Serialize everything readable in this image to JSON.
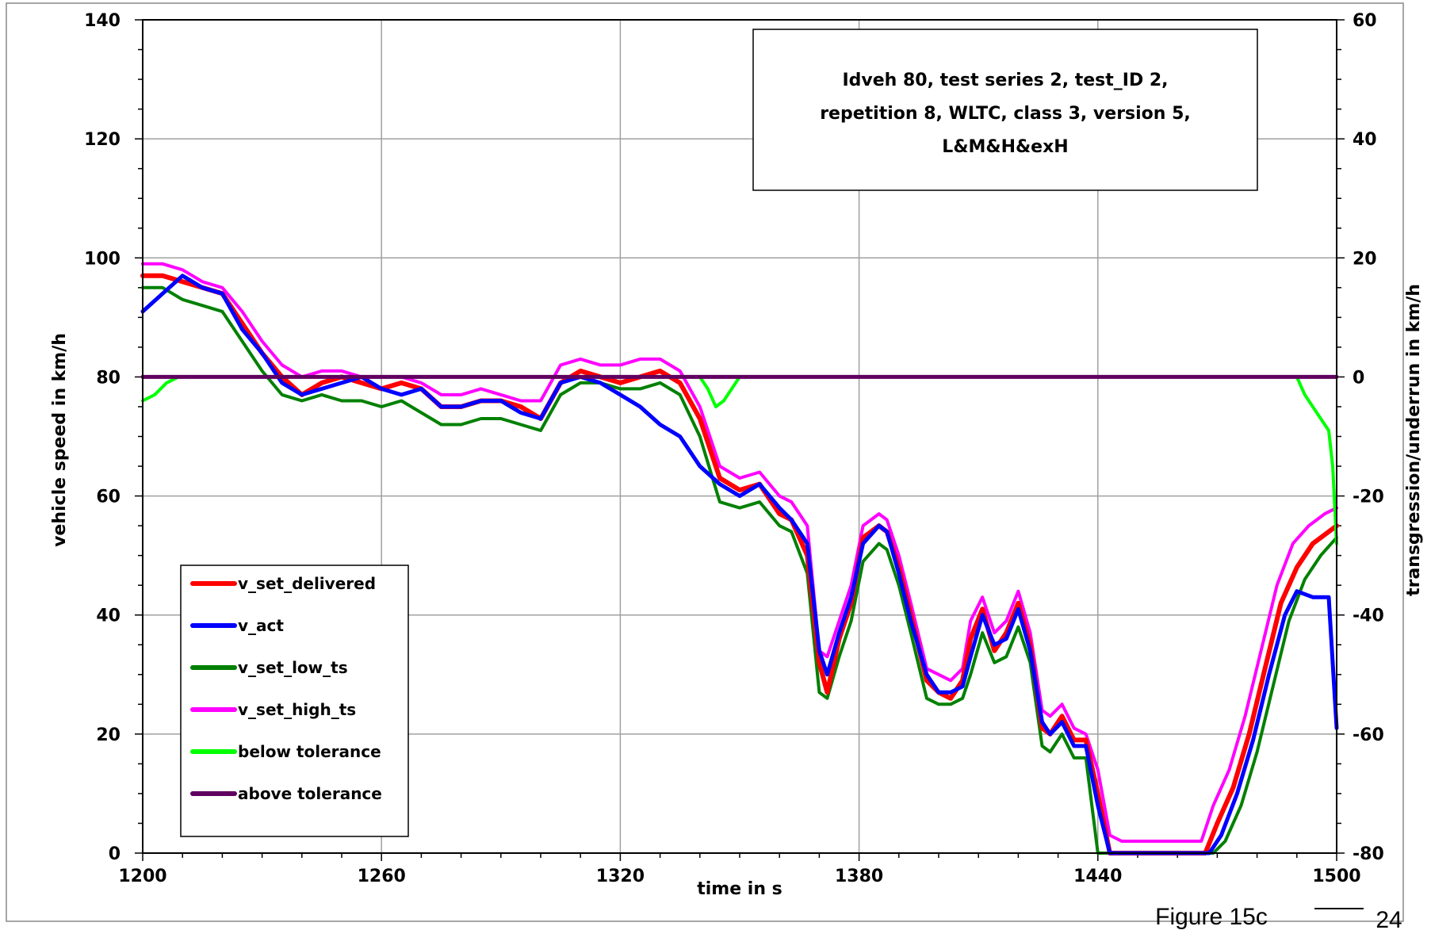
{
  "chart_data": {
    "type": "line",
    "title_lines": [
      "Idveh 80, test series 2, test_ID 2,",
      "repetition 8, WLTC, class 3, version 5,",
      "L&M&H&exH"
    ],
    "xlabel": "time in s",
    "ylabel": "vehicle speed in km/h",
    "y2label": "transgression/underrun in km/h",
    "xlim": [
      1200,
      1500
    ],
    "ylim": [
      0,
      140
    ],
    "y2lim": [
      -80,
      60
    ],
    "x_ticks": [
      "1200",
      "1260",
      "1320",
      "1380",
      "1440",
      "1500"
    ],
    "y_ticks": [
      "0",
      "20",
      "40",
      "60",
      "80",
      "100",
      "120",
      "140"
    ],
    "y2_ticks": [
      "-80",
      "-60",
      "-40",
      "-20",
      "0",
      "20",
      "40",
      "60"
    ],
    "grid": true,
    "legend_position": "bottom-left",
    "series": [
      {
        "name": "v_set_delivered",
        "color": "#ff0000",
        "axis": "left",
        "x": [
          1200,
          1205,
          1210,
          1215,
          1220,
          1225,
          1230,
          1235,
          1240,
          1245,
          1250,
          1255,
          1260,
          1265,
          1270,
          1275,
          1280,
          1285,
          1290,
          1295,
          1300,
          1305,
          1310,
          1315,
          1320,
          1325,
          1330,
          1335,
          1340,
          1345,
          1350,
          1355,
          1360,
          1363,
          1367,
          1370,
          1372,
          1375,
          1378,
          1381,
          1385,
          1387,
          1390,
          1393,
          1397,
          1400,
          1403,
          1406,
          1408,
          1411,
          1414,
          1417,
          1420,
          1423,
          1426,
          1428,
          1431,
          1434,
          1437,
          1440,
          1443,
          1446,
          1450,
          1460,
          1467,
          1470,
          1474,
          1478,
          1482,
          1486,
          1490,
          1494,
          1498,
          1500
        ],
        "y": [
          97,
          97,
          96,
          95,
          94,
          89,
          84,
          80,
          77,
          79,
          80,
          79,
          78,
          79,
          78,
          75,
          75,
          76,
          76,
          75,
          73,
          79,
          81,
          80,
          79,
          80,
          81,
          79,
          73,
          63,
          61,
          62,
          57,
          56,
          50,
          32,
          27,
          36,
          42,
          53,
          55,
          54,
          48,
          40,
          29,
          27,
          26,
          29,
          36,
          41,
          34,
          37,
          42,
          35,
          21,
          20,
          23,
          19,
          19,
          10,
          0,
          0,
          0,
          0,
          0,
          5,
          11,
          20,
          31,
          42,
          48,
          52,
          54,
          55
        ]
      },
      {
        "name": "v_act",
        "color": "#0000ff",
        "axis": "left",
        "x": [
          1200,
          1205,
          1210,
          1215,
          1220,
          1225,
          1230,
          1235,
          1240,
          1245,
          1250,
          1255,
          1260,
          1265,
          1270,
          1275,
          1280,
          1285,
          1290,
          1295,
          1300,
          1305,
          1310,
          1315,
          1320,
          1325,
          1330,
          1335,
          1340,
          1345,
          1350,
          1355,
          1360,
          1363,
          1367,
          1370,
          1372,
          1375,
          1378,
          1381,
          1385,
          1387,
          1390,
          1393,
          1397,
          1400,
          1403,
          1406,
          1408,
          1411,
          1414,
          1417,
          1420,
          1423,
          1426,
          1428,
          1431,
          1434,
          1437,
          1440,
          1443,
          1446,
          1450,
          1460,
          1468,
          1471,
          1475,
          1479,
          1483,
          1487,
          1490,
          1494,
          1498,
          1500
        ],
        "y": [
          91,
          94,
          97,
          95,
          94,
          88,
          84,
          79,
          77,
          78,
          79,
          80,
          78,
          77,
          78,
          75,
          75,
          76,
          76,
          74,
          73,
          79,
          80,
          79,
          77,
          75,
          72,
          70,
          65,
          62,
          60,
          62,
          58,
          56,
          52,
          34,
          30,
          37,
          43,
          52,
          55,
          54,
          47,
          39,
          30,
          27,
          27,
          28,
          33,
          40,
          35,
          36,
          41,
          34,
          22,
          20,
          22,
          18,
          18,
          8,
          0,
          0,
          0,
          0,
          0,
          3,
          10,
          19,
          30,
          40,
          44,
          43,
          43,
          21
        ]
      },
      {
        "name": "v_set_low_ts",
        "color": "#008000",
        "axis": "left",
        "x": [
          1200,
          1205,
          1210,
          1215,
          1220,
          1225,
          1230,
          1235,
          1240,
          1245,
          1250,
          1255,
          1260,
          1265,
          1270,
          1275,
          1280,
          1285,
          1290,
          1295,
          1300,
          1305,
          1310,
          1315,
          1320,
          1325,
          1330,
          1335,
          1340,
          1345,
          1350,
          1355,
          1360,
          1363,
          1367,
          1370,
          1372,
          1375,
          1378,
          1381,
          1385,
          1387,
          1390,
          1393,
          1397,
          1400,
          1403,
          1406,
          1408,
          1411,
          1414,
          1417,
          1420,
          1423,
          1426,
          1428,
          1431,
          1434,
          1437,
          1440,
          1443,
          1446,
          1450,
          1460,
          1469,
          1472,
          1476,
          1480,
          1484,
          1488,
          1492,
          1496,
          1500
        ],
        "y": [
          95,
          95,
          93,
          92,
          91,
          86,
          81,
          77,
          76,
          77,
          76,
          76,
          75,
          76,
          74,
          72,
          72,
          73,
          73,
          72,
          71,
          77,
          79,
          79,
          78,
          78,
          79,
          77,
          70,
          59,
          58,
          59,
          55,
          54,
          47,
          27,
          26,
          33,
          39,
          49,
          52,
          51,
          45,
          37,
          26,
          25,
          25,
          26,
          30,
          37,
          32,
          33,
          38,
          32,
          18,
          17,
          20,
          16,
          16,
          0,
          0,
          0,
          0,
          0,
          0,
          2,
          8,
          17,
          28,
          39,
          46,
          50,
          53
        ]
      },
      {
        "name": "v_set_high_ts",
        "color": "#ff00ff",
        "axis": "left",
        "x": [
          1200,
          1205,
          1210,
          1215,
          1220,
          1225,
          1230,
          1235,
          1240,
          1245,
          1250,
          1255,
          1260,
          1265,
          1270,
          1275,
          1280,
          1285,
          1290,
          1295,
          1300,
          1305,
          1310,
          1315,
          1320,
          1325,
          1330,
          1335,
          1340,
          1345,
          1350,
          1355,
          1360,
          1363,
          1367,
          1370,
          1372,
          1375,
          1378,
          1381,
          1385,
          1387,
          1390,
          1393,
          1397,
          1400,
          1403,
          1406,
          1408,
          1411,
          1414,
          1417,
          1420,
          1423,
          1426,
          1428,
          1431,
          1434,
          1437,
          1440,
          1443,
          1446,
          1450,
          1460,
          1466,
          1469,
          1473,
          1477,
          1481,
          1485,
          1489,
          1493,
          1497,
          1500
        ],
        "y": [
          99,
          99,
          98,
          96,
          95,
          91,
          86,
          82,
          80,
          81,
          81,
          80,
          80,
          80,
          79,
          77,
          77,
          78,
          77,
          76,
          76,
          82,
          83,
          82,
          82,
          83,
          83,
          81,
          75,
          65,
          63,
          64,
          60,
          59,
          55,
          34,
          33,
          39,
          45,
          55,
          57,
          56,
          50,
          42,
          31,
          30,
          29,
          31,
          39,
          43,
          37,
          39,
          44,
          37,
          24,
          23,
          25,
          21,
          20,
          14,
          3,
          2,
          2,
          2,
          2,
          8,
          14,
          23,
          34,
          45,
          52,
          55,
          57,
          58
        ]
      },
      {
        "name": "below tolerance",
        "color": "#00ff00",
        "axis": "right",
        "x": [
          1200,
          1203,
          1206,
          1209,
          1340,
          1342,
          1344,
          1346,
          1348,
          1350,
          1490,
          1492,
          1494,
          1496,
          1498,
          1499,
          1500
        ],
        "y": [
          -4,
          -3,
          -1,
          0,
          0,
          -2,
          -5,
          -4,
          -2,
          0,
          0,
          -3,
          -5,
          -7,
          -9,
          -15,
          -28
        ]
      },
      {
        "name": "above tolerance",
        "color": "#600060",
        "axis": "right",
        "x": [
          1200,
          1500
        ],
        "y": [
          0,
          0
        ]
      }
    ]
  },
  "footer": {
    "figure_label": "Figure 15c",
    "page_number": "24"
  }
}
